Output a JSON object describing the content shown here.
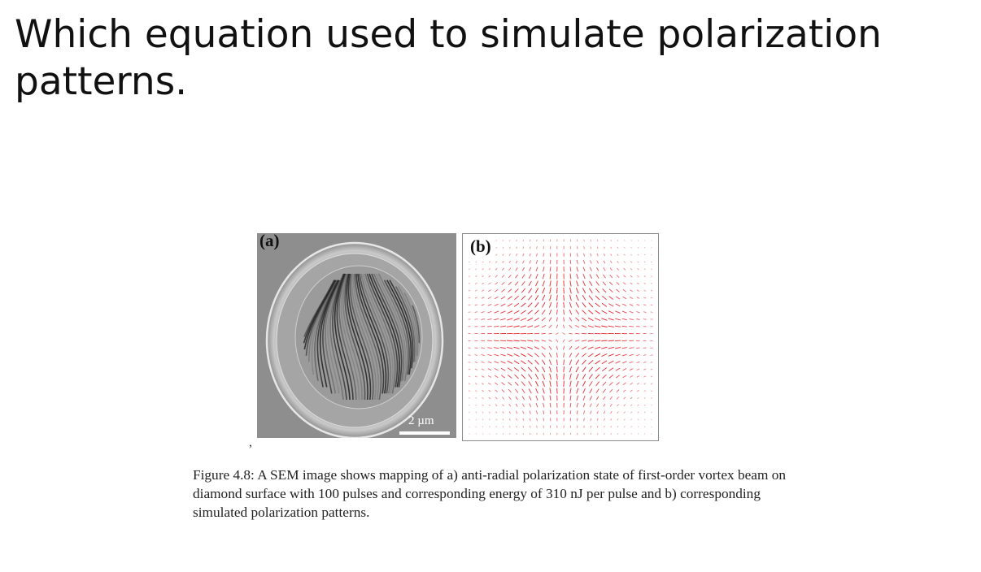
{
  "slide": {
    "title": "Which equation used to simulate polarization patterns."
  },
  "figure": {
    "panel_a": {
      "label": "(a)",
      "scale_label": "2 µm"
    },
    "panel_b": {
      "label": "(b)",
      "arrow_color": "#e8202a"
    },
    "stray_mark": ",",
    "caption": "Figure 4.8: A SEM image shows mapping of a) anti-radial polarization state of first-order vortex beam on diamond surface with 100 pulses and corresponding energy of 310 nJ per pulse and b) corresponding simulated polarization patterns."
  }
}
